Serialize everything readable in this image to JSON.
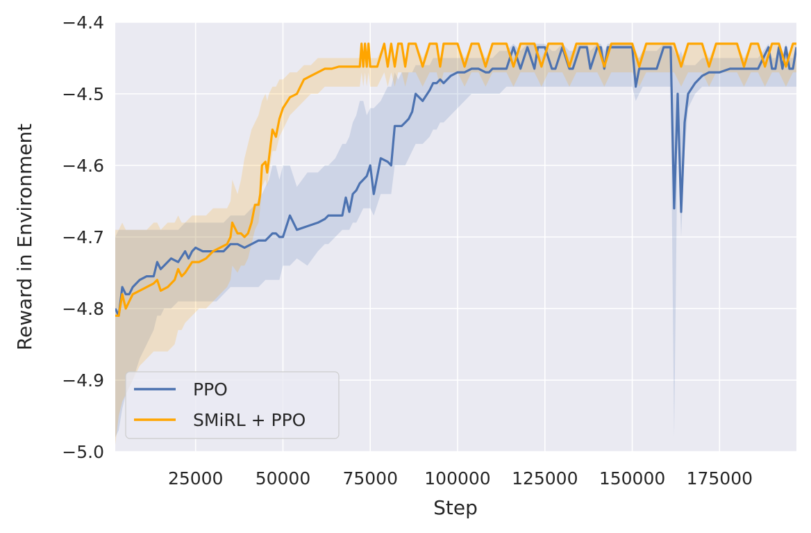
{
  "chart_data": {
    "type": "line",
    "title": "",
    "xlabel": "Step",
    "ylabel": "Reward in Environment",
    "xlim": [
      2000,
      197000
    ],
    "ylim": [
      -5.0,
      -4.4
    ],
    "xticks": [
      25000,
      50000,
      75000,
      100000,
      125000,
      150000,
      175000
    ],
    "xtick_labels": [
      "25000",
      "50000",
      "75000",
      "100000",
      "125000",
      "150000",
      "175000"
    ],
    "yticks": [
      -5.0,
      -4.9,
      -4.8,
      -4.7,
      -4.6,
      -4.5,
      -4.4
    ],
    "ytick_labels": [
      "−5.0",
      "−4.9",
      "−4.8",
      "−4.7",
      "−4.6",
      "−4.5",
      "−4.4"
    ],
    "grid": true,
    "legend_position": "lower-left",
    "colors": {
      "background": "#eaeaf2",
      "grid": "#ffffff",
      "ppo": "#4c72b0",
      "smirl": "#ffa500"
    },
    "series": [
      {
        "name": "PPO",
        "color": "#4c72b0",
        "x": [
          2000,
          3000,
          4000,
          5000,
          6000,
          7000,
          9000,
          11000,
          13000,
          14000,
          15000,
          16000,
          18000,
          20000,
          22000,
          23000,
          24000,
          25000,
          27000,
          29000,
          31000,
          33000,
          35000,
          36000,
          37000,
          39000,
          41000,
          43000,
          45000,
          46000,
          47000,
          48000,
          49000,
          50000,
          52000,
          54000,
          57000,
          60000,
          62000,
          63000,
          65000,
          67000,
          68000,
          69000,
          70000,
          71000,
          72000,
          73000,
          74000,
          75000,
          76000,
          78000,
          80000,
          81000,
          82000,
          83000,
          84000,
          85000,
          86000,
          87000,
          88000,
          90000,
          92000,
          93000,
          94000,
          95000,
          96000,
          98000,
          100000,
          102000,
          104000,
          106000,
          108000,
          109000,
          110000,
          112000,
          114000,
          116000,
          118000,
          120000,
          122000,
          123000,
          125000,
          127000,
          128000,
          130000,
          132000,
          133000,
          135000,
          137000,
          138000,
          140000,
          141000,
          142000,
          143000,
          145000,
          147000,
          149000,
          150000,
          151000,
          152000,
          153000,
          155000,
          157000,
          159000,
          160000,
          160500,
          161000,
          162000,
          163000,
          164000,
          165000,
          166000,
          168000,
          170000,
          172000,
          175000,
          178000,
          182000,
          186000,
          189000,
          190000,
          191000,
          192000,
          193000,
          194000,
          195000,
          196000,
          197000
        ],
        "y": [
          -4.8,
          -4.81,
          -4.77,
          -4.78,
          -4.78,
          -4.77,
          -4.76,
          -4.755,
          -4.755,
          -4.735,
          -4.745,
          -4.74,
          -4.73,
          -4.735,
          -4.72,
          -4.73,
          -4.72,
          -4.715,
          -4.72,
          -4.72,
          -4.72,
          -4.72,
          -4.71,
          -4.71,
          -4.71,
          -4.715,
          -4.71,
          -4.705,
          -4.705,
          -4.7,
          -4.695,
          -4.695,
          -4.7,
          -4.7,
          -4.67,
          -4.69,
          -4.685,
          -4.68,
          -4.675,
          -4.67,
          -4.67,
          -4.67,
          -4.645,
          -4.665,
          -4.64,
          -4.635,
          -4.625,
          -4.62,
          -4.615,
          -4.6,
          -4.64,
          -4.59,
          -4.595,
          -4.6,
          -4.545,
          -4.545,
          -4.545,
          -4.54,
          -4.535,
          -4.525,
          -4.5,
          -4.51,
          -4.495,
          -4.485,
          -4.485,
          -4.48,
          -4.485,
          -4.475,
          -4.47,
          -4.47,
          -4.465,
          -4.465,
          -4.47,
          -4.47,
          -4.465,
          -4.465,
          -4.465,
          -4.435,
          -4.465,
          -4.435,
          -4.465,
          -4.435,
          -4.435,
          -4.465,
          -4.465,
          -4.435,
          -4.465,
          -4.465,
          -4.435,
          -4.435,
          -4.465,
          -4.435,
          -4.435,
          -4.465,
          -4.435,
          -4.435,
          -4.435,
          -4.435,
          -4.435,
          -4.49,
          -4.465,
          -4.465,
          -4.465,
          -4.465,
          -4.435,
          -4.435,
          -4.435,
          -4.435,
          -4.66,
          -4.5,
          -4.665,
          -4.54,
          -4.5,
          -4.485,
          -4.475,
          -4.47,
          -4.47,
          -4.465,
          -4.465,
          -4.465,
          -4.435,
          -4.465,
          -4.465,
          -4.435,
          -4.465,
          -4.435,
          -4.465,
          -4.465,
          -4.435
        ],
        "lower": [
          -4.98,
          -4.97,
          -4.94,
          -4.92,
          -4.91,
          -4.9,
          -4.87,
          -4.85,
          -4.83,
          -4.81,
          -4.81,
          -4.8,
          -4.8,
          -4.79,
          -4.79,
          -4.79,
          -4.79,
          -4.79,
          -4.79,
          -4.79,
          -4.79,
          -4.78,
          -4.77,
          -4.77,
          -4.77,
          -4.77,
          -4.77,
          -4.77,
          -4.76,
          -4.76,
          -4.76,
          -4.76,
          -4.76,
          -4.74,
          -4.74,
          -4.73,
          -4.74,
          -4.72,
          -4.71,
          -4.71,
          -4.7,
          -4.69,
          -4.69,
          -4.69,
          -4.68,
          -4.68,
          -4.67,
          -4.66,
          -4.66,
          -4.66,
          -4.67,
          -4.64,
          -4.64,
          -4.64,
          -4.6,
          -4.6,
          -4.6,
          -4.6,
          -4.59,
          -4.58,
          -4.57,
          -4.57,
          -4.56,
          -4.55,
          -4.55,
          -4.54,
          -4.54,
          -4.53,
          -4.52,
          -4.51,
          -4.5,
          -4.5,
          -4.5,
          -4.5,
          -4.5,
          -4.5,
          -4.49,
          -4.49,
          -4.49,
          -4.49,
          -4.49,
          -4.49,
          -4.49,
          -4.49,
          -4.49,
          -4.49,
          -4.49,
          -4.49,
          -4.49,
          -4.49,
          -4.49,
          -4.49,
          -4.49,
          -4.49,
          -4.49,
          -4.49,
          -4.49,
          -4.49,
          -4.49,
          -4.51,
          -4.5,
          -4.49,
          -4.49,
          -4.49,
          -4.49,
          -4.49,
          -4.49,
          -4.49,
          -4.98,
          -4.55,
          -4.7,
          -4.58,
          -4.52,
          -4.5,
          -4.49,
          -4.49,
          -4.49,
          -4.49,
          -4.49,
          -4.49,
          -4.49,
          -4.49,
          -4.49,
          -4.49,
          -4.49,
          -4.49,
          -4.49,
          -4.49,
          -4.49
        ],
        "upper": [
          -4.7,
          -4.69,
          -4.69,
          -4.69,
          -4.69,
          -4.69,
          -4.69,
          -4.69,
          -4.69,
          -4.69,
          -4.69,
          -4.69,
          -4.69,
          -4.69,
          -4.68,
          -4.68,
          -4.68,
          -4.68,
          -4.68,
          -4.68,
          -4.68,
          -4.68,
          -4.67,
          -4.67,
          -4.67,
          -4.67,
          -4.66,
          -4.65,
          -4.63,
          -4.62,
          -4.6,
          -4.6,
          -4.62,
          -4.6,
          -4.6,
          -4.63,
          -4.61,
          -4.61,
          -4.6,
          -4.6,
          -4.59,
          -4.57,
          -4.57,
          -4.56,
          -4.54,
          -4.53,
          -4.51,
          -4.51,
          -4.53,
          -4.52,
          -4.52,
          -4.51,
          -4.49,
          -4.49,
          -4.47,
          -4.48,
          -4.47,
          -4.47,
          -4.47,
          -4.47,
          -4.46,
          -4.46,
          -4.46,
          -4.45,
          -4.45,
          -4.45,
          -4.45,
          -4.45,
          -4.45,
          -4.45,
          -4.45,
          -4.45,
          -4.45,
          -4.45,
          -4.45,
          -4.44,
          -4.44,
          -4.43,
          -4.44,
          -4.43,
          -4.43,
          -4.43,
          -4.43,
          -4.44,
          -4.44,
          -4.43,
          -4.44,
          -4.44,
          -4.43,
          -4.43,
          -4.44,
          -4.43,
          -4.43,
          -4.44,
          -4.43,
          -4.43,
          -4.43,
          -4.43,
          -4.43,
          -4.45,
          -4.45,
          -4.44,
          -4.44,
          -4.44,
          -4.43,
          -4.43,
          -4.43,
          -4.43,
          -4.44,
          -4.45,
          -4.44,
          -4.46,
          -4.46,
          -4.46,
          -4.45,
          -4.45,
          -4.45,
          -4.45,
          -4.45,
          -4.45,
          -4.43,
          -4.45,
          -4.45,
          -4.43,
          -4.45,
          -4.43,
          -4.45,
          -4.45,
          -4.43
        ]
      },
      {
        "name": "SMiRL + PPO",
        "color": "#ffa500",
        "x": [
          2000,
          3000,
          4000,
          5000,
          6000,
          7000,
          9000,
          11000,
          13000,
          14000,
          15000,
          17000,
          19000,
          20000,
          21000,
          22000,
          24000,
          26000,
          28000,
          30000,
          32000,
          34000,
          35000,
          35500,
          37000,
          38000,
          39000,
          40000,
          41000,
          42000,
          43000,
          43500,
          44000,
          45000,
          45500,
          46000,
          47000,
          48000,
          49000,
          50000,
          52000,
          54000,
          56000,
          58000,
          60000,
          62000,
          64000,
          66000,
          68000,
          70000,
          71000,
          72000,
          72500,
          73000,
          73500,
          74000,
          74500,
          75000,
          77000,
          79000,
          80000,
          81000,
          82000,
          83000,
          84000,
          85000,
          86000,
          88000,
          90000,
          92000,
          94000,
          95000,
          96000,
          98000,
          100000,
          102000,
          104000,
          106000,
          108000,
          110000,
          112000,
          114000,
          116000,
          118000,
          120000,
          122000,
          124000,
          126000,
          128000,
          130000,
          132000,
          134000,
          136000,
          138000,
          140000,
          142000,
          144000,
          146000,
          148000,
          150000,
          152000,
          154000,
          156000,
          158000,
          160000,
          162000,
          164000,
          166000,
          168000,
          170000,
          172000,
          174000,
          176000,
          178000,
          180000,
          182000,
          184000,
          186000,
          188000,
          190000,
          192000,
          194000,
          196000,
          197000
        ],
        "y": [
          -4.81,
          -4.81,
          -4.78,
          -4.8,
          -4.79,
          -4.78,
          -4.775,
          -4.77,
          -4.765,
          -4.76,
          -4.775,
          -4.77,
          -4.76,
          -4.745,
          -4.755,
          -4.75,
          -4.735,
          -4.735,
          -4.73,
          -4.72,
          -4.715,
          -4.71,
          -4.7,
          -4.68,
          -4.695,
          -4.695,
          -4.7,
          -4.695,
          -4.68,
          -4.655,
          -4.655,
          -4.64,
          -4.6,
          -4.595,
          -4.61,
          -4.59,
          -4.55,
          -4.56,
          -4.535,
          -4.52,
          -4.505,
          -4.5,
          -4.48,
          -4.475,
          -4.47,
          -4.465,
          -4.465,
          -4.462,
          -4.462,
          -4.462,
          -4.462,
          -4.462,
          -4.43,
          -4.462,
          -4.43,
          -4.462,
          -4.43,
          -4.462,
          -4.462,
          -4.43,
          -4.462,
          -4.43,
          -4.462,
          -4.43,
          -4.43,
          -4.462,
          -4.43,
          -4.43,
          -4.462,
          -4.43,
          -4.43,
          -4.462,
          -4.43,
          -4.43,
          -4.43,
          -4.462,
          -4.43,
          -4.43,
          -4.462,
          -4.43,
          -4.43,
          -4.43,
          -4.462,
          -4.43,
          -4.43,
          -4.43,
          -4.462,
          -4.43,
          -4.43,
          -4.43,
          -4.462,
          -4.43,
          -4.43,
          -4.43,
          -4.43,
          -4.462,
          -4.43,
          -4.43,
          -4.43,
          -4.43,
          -4.462,
          -4.43,
          -4.43,
          -4.43,
          -4.43,
          -4.43,
          -4.462,
          -4.43,
          -4.43,
          -4.43,
          -4.462,
          -4.43,
          -4.43,
          -4.43,
          -4.43,
          -4.462,
          -4.43,
          -4.43,
          -4.462,
          -4.43,
          -4.43,
          -4.462,
          -4.43,
          -4.43
        ],
        "lower": [
          -4.99,
          -4.95,
          -4.93,
          -4.92,
          -4.91,
          -4.9,
          -4.88,
          -4.87,
          -4.86,
          -4.86,
          -4.86,
          -4.86,
          -4.85,
          -4.83,
          -4.83,
          -4.82,
          -4.81,
          -4.8,
          -4.8,
          -4.79,
          -4.78,
          -4.77,
          -4.76,
          -4.74,
          -4.75,
          -4.74,
          -4.74,
          -4.73,
          -4.71,
          -4.69,
          -4.68,
          -4.66,
          -4.63,
          -4.62,
          -4.63,
          -4.61,
          -4.58,
          -4.58,
          -4.56,
          -4.55,
          -4.53,
          -4.52,
          -4.51,
          -4.5,
          -4.5,
          -4.49,
          -4.49,
          -4.49,
          -4.49,
          -4.49,
          -4.49,
          -4.49,
          -4.47,
          -4.49,
          -4.47,
          -4.49,
          -4.47,
          -4.49,
          -4.49,
          -4.47,
          -4.49,
          -4.47,
          -4.49,
          -4.47,
          -4.47,
          -4.49,
          -4.47,
          -4.47,
          -4.49,
          -4.47,
          -4.47,
          -4.49,
          -4.47,
          -4.47,
          -4.47,
          -4.49,
          -4.47,
          -4.47,
          -4.49,
          -4.47,
          -4.47,
          -4.47,
          -4.49,
          -4.47,
          -4.47,
          -4.47,
          -4.49,
          -4.47,
          -4.47,
          -4.47,
          -4.49,
          -4.47,
          -4.47,
          -4.47,
          -4.47,
          -4.49,
          -4.47,
          -4.47,
          -4.47,
          -4.47,
          -4.49,
          -4.47,
          -4.47,
          -4.47,
          -4.47,
          -4.47,
          -4.49,
          -4.47,
          -4.47,
          -4.47,
          -4.49,
          -4.47,
          -4.47,
          -4.47,
          -4.47,
          -4.49,
          -4.47,
          -4.47,
          -4.49,
          -4.47,
          -4.47,
          -4.49,
          -4.47,
          -4.47
        ],
        "upper": [
          -4.69,
          -4.69,
          -4.68,
          -4.69,
          -4.69,
          -4.69,
          -4.69,
          -4.69,
          -4.68,
          -4.68,
          -4.69,
          -4.68,
          -4.68,
          -4.67,
          -4.68,
          -4.68,
          -4.67,
          -4.67,
          -4.67,
          -4.66,
          -4.66,
          -4.66,
          -4.65,
          -4.62,
          -4.64,
          -4.62,
          -4.59,
          -4.57,
          -4.55,
          -4.54,
          -4.53,
          -4.52,
          -4.51,
          -4.5,
          -4.51,
          -4.5,
          -4.49,
          -4.49,
          -4.48,
          -4.48,
          -4.47,
          -4.47,
          -4.46,
          -4.46,
          -4.45,
          -4.45,
          -4.45,
          -4.45,
          -4.45,
          -4.45,
          -4.45,
          -4.45,
          -4.43,
          -4.45,
          -4.43,
          -4.45,
          -4.43,
          -4.45,
          -4.45,
          -4.43,
          -4.45,
          -4.43,
          -4.45,
          -4.43,
          -4.43,
          -4.45,
          -4.43,
          -4.43,
          -4.45,
          -4.43,
          -4.43,
          -4.45,
          -4.43,
          -4.43,
          -4.43,
          -4.45,
          -4.43,
          -4.43,
          -4.45,
          -4.43,
          -4.43,
          -4.43,
          -4.45,
          -4.43,
          -4.43,
          -4.43,
          -4.45,
          -4.43,
          -4.43,
          -4.43,
          -4.45,
          -4.43,
          -4.43,
          -4.43,
          -4.43,
          -4.45,
          -4.43,
          -4.43,
          -4.43,
          -4.43,
          -4.45,
          -4.43,
          -4.43,
          -4.43,
          -4.43,
          -4.43,
          -4.45,
          -4.43,
          -4.43,
          -4.43,
          -4.45,
          -4.43,
          -4.43,
          -4.43,
          -4.43,
          -4.45,
          -4.43,
          -4.43,
          -4.45,
          -4.43,
          -4.43,
          -4.45,
          -4.43,
          -4.43
        ]
      }
    ]
  }
}
